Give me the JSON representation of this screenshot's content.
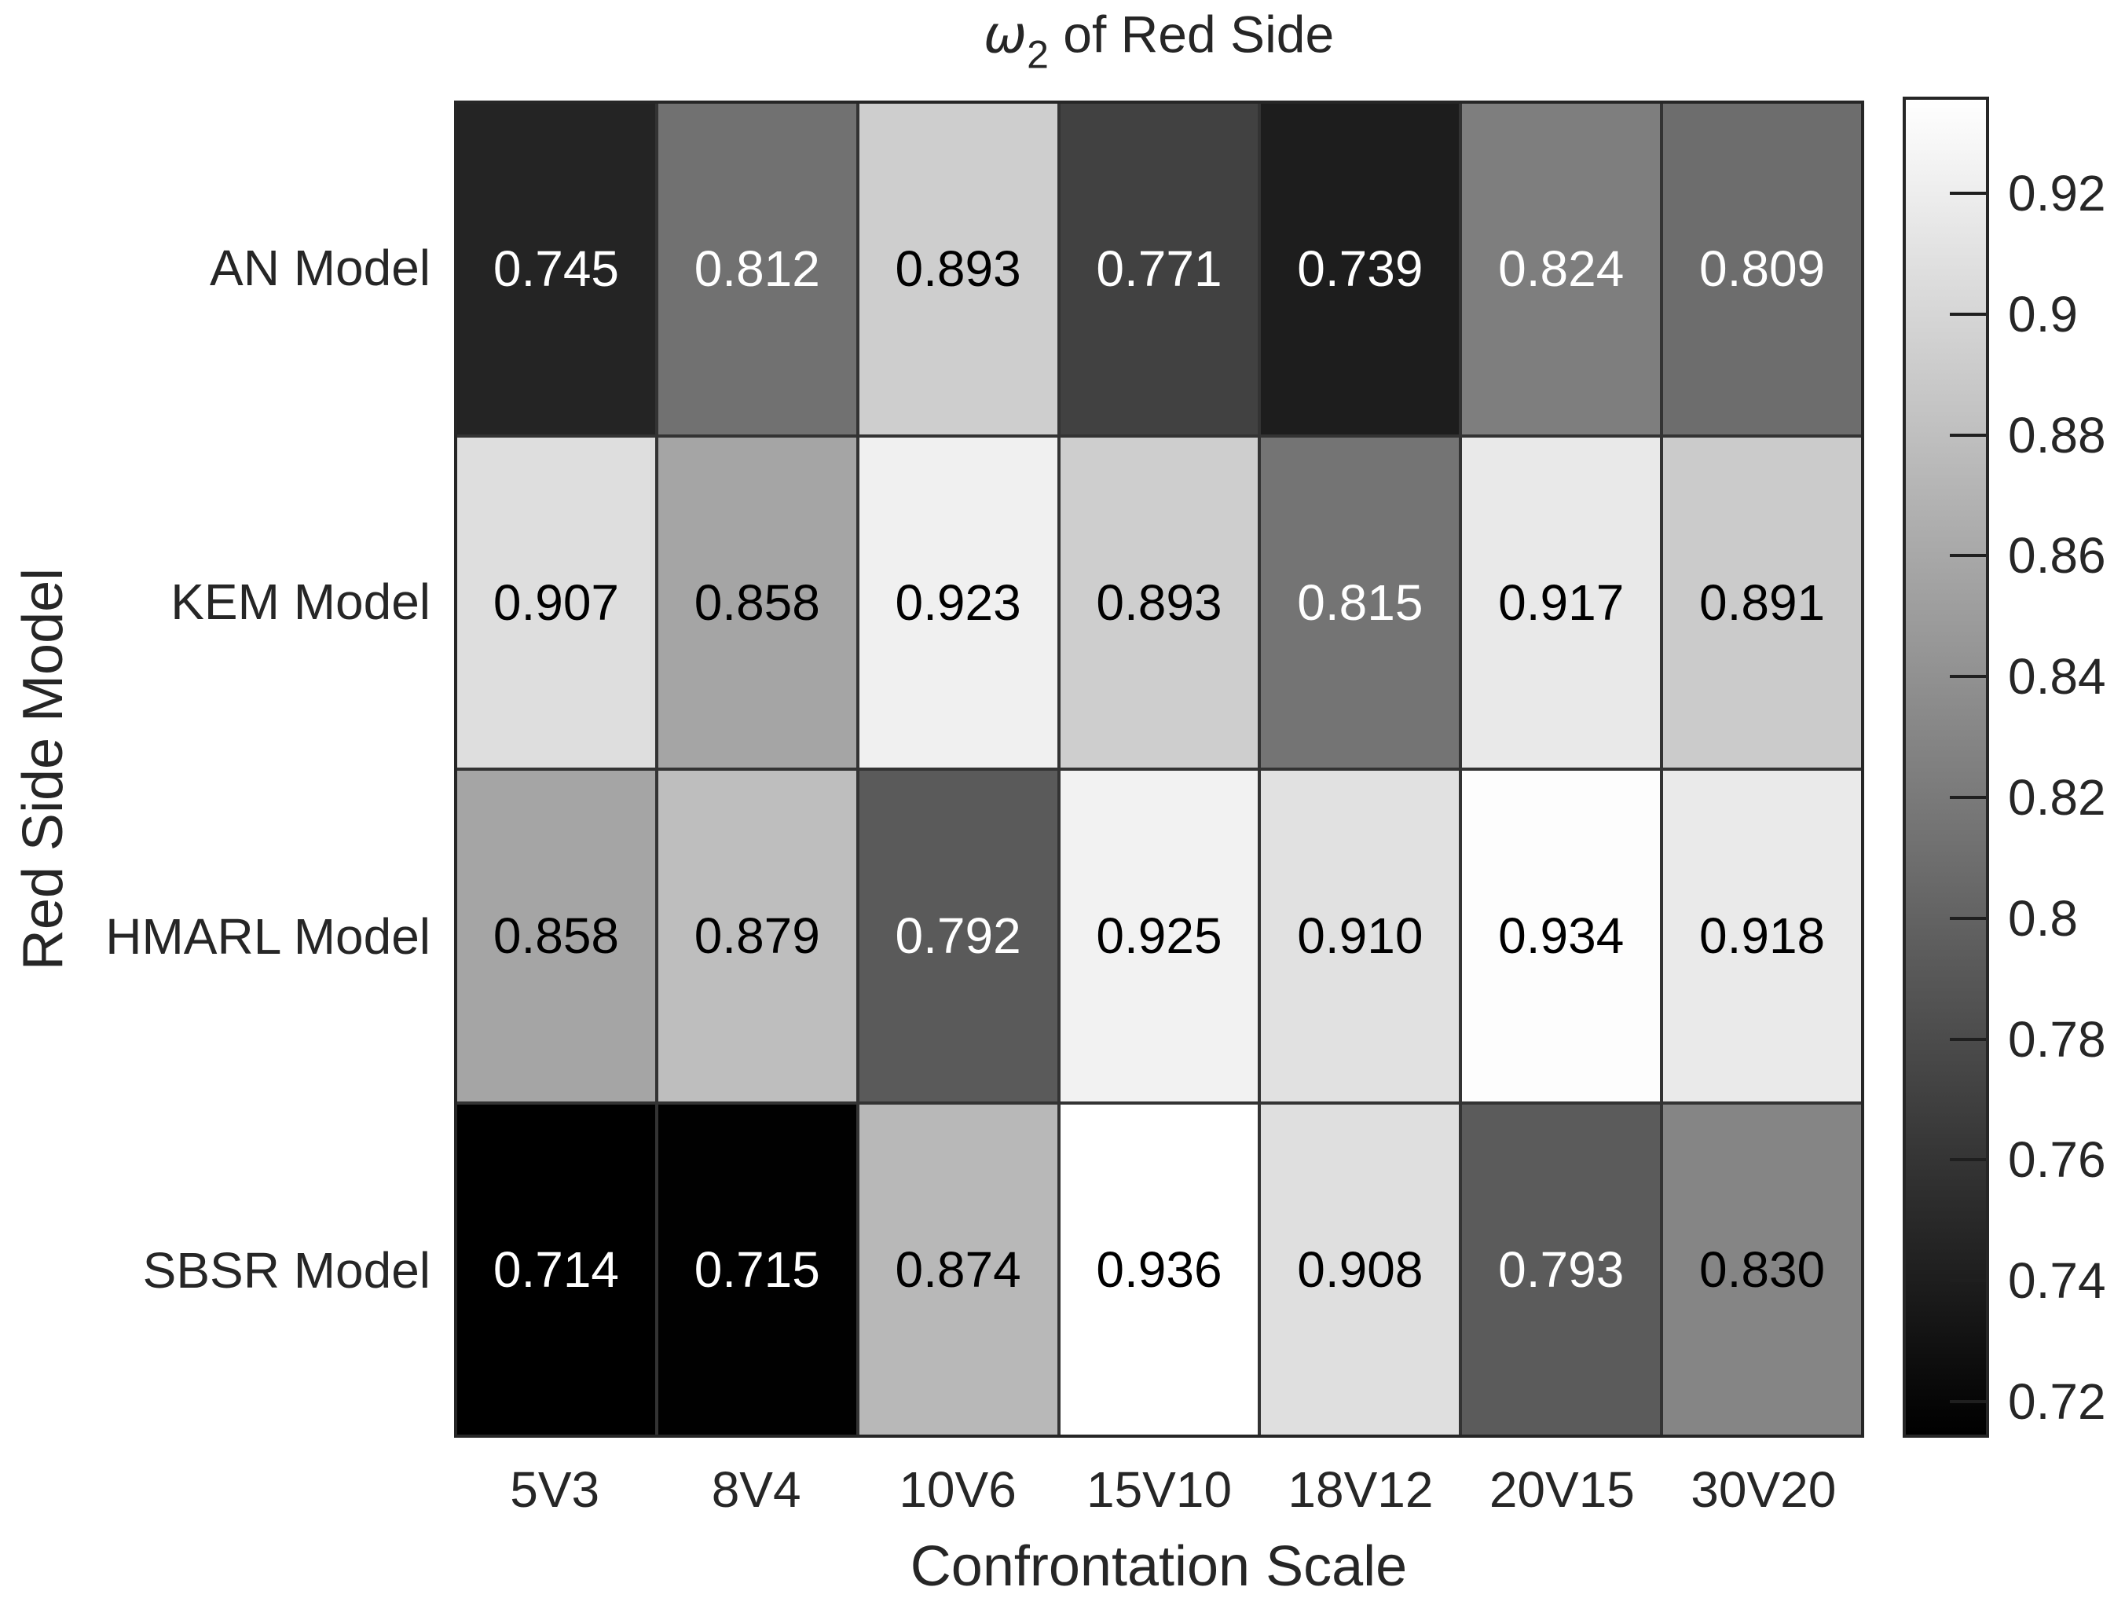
{
  "chart_data": {
    "type": "heatmap",
    "title": {
      "symbol": "ω",
      "subscript": "2",
      "rest": " of Red Side"
    },
    "xlabel": "Confrontation Scale",
    "ylabel": "Red Side Model",
    "rows": [
      "AN Model",
      "KEM Model",
      "HMARL Model",
      "SBSR Model"
    ],
    "columns": [
      "5V3",
      "8V4",
      "10V6",
      "15V10",
      "18V12",
      "20V15",
      "30V20"
    ],
    "values": [
      [
        0.745,
        0.812,
        0.893,
        0.771,
        0.739,
        0.824,
        0.809
      ],
      [
        0.907,
        0.858,
        0.923,
        0.893,
        0.815,
        0.917,
        0.891
      ],
      [
        0.858,
        0.879,
        0.792,
        0.925,
        0.91,
        0.934,
        0.918
      ],
      [
        0.714,
        0.715,
        0.874,
        0.936,
        0.908,
        0.793,
        0.83
      ]
    ],
    "cell_labels": [
      [
        "0.745",
        "0.812",
        "0.893",
        "0.771",
        "0.739",
        "0.824",
        "0.809"
      ],
      [
        "0.907",
        "0.858",
        "0.923",
        "0.893",
        "0.815",
        "0.917",
        "0.891"
      ],
      [
        "0.858",
        "0.879",
        "0.792",
        "0.925",
        "0.910",
        "0.934",
        "0.918"
      ],
      [
        "0.714",
        "0.715",
        "0.874",
        "0.936",
        "0.908",
        "0.793",
        "0.830"
      ]
    ],
    "colormap": "gray",
    "color_range": [
      0.714,
      0.936
    ],
    "colorbar_tick_values": [
      0.92,
      0.9,
      0.88,
      0.86,
      0.84,
      0.82,
      0.8,
      0.78,
      0.76,
      0.74,
      0.72
    ],
    "colorbar_tick_labels": [
      "0.92",
      "0.9",
      "0.88",
      "0.86",
      "0.84",
      "0.82",
      "0.8",
      "0.78",
      "0.76",
      "0.74",
      "0.72"
    ],
    "legend_position": "right",
    "grid_visible": true,
    "colors": {
      "grid_line": "#333333",
      "border": "#262626",
      "background": "#ffffff",
      "text_on_dark": "#ffffff",
      "text_on_light": "#000000",
      "label_text": "#262626"
    }
  }
}
